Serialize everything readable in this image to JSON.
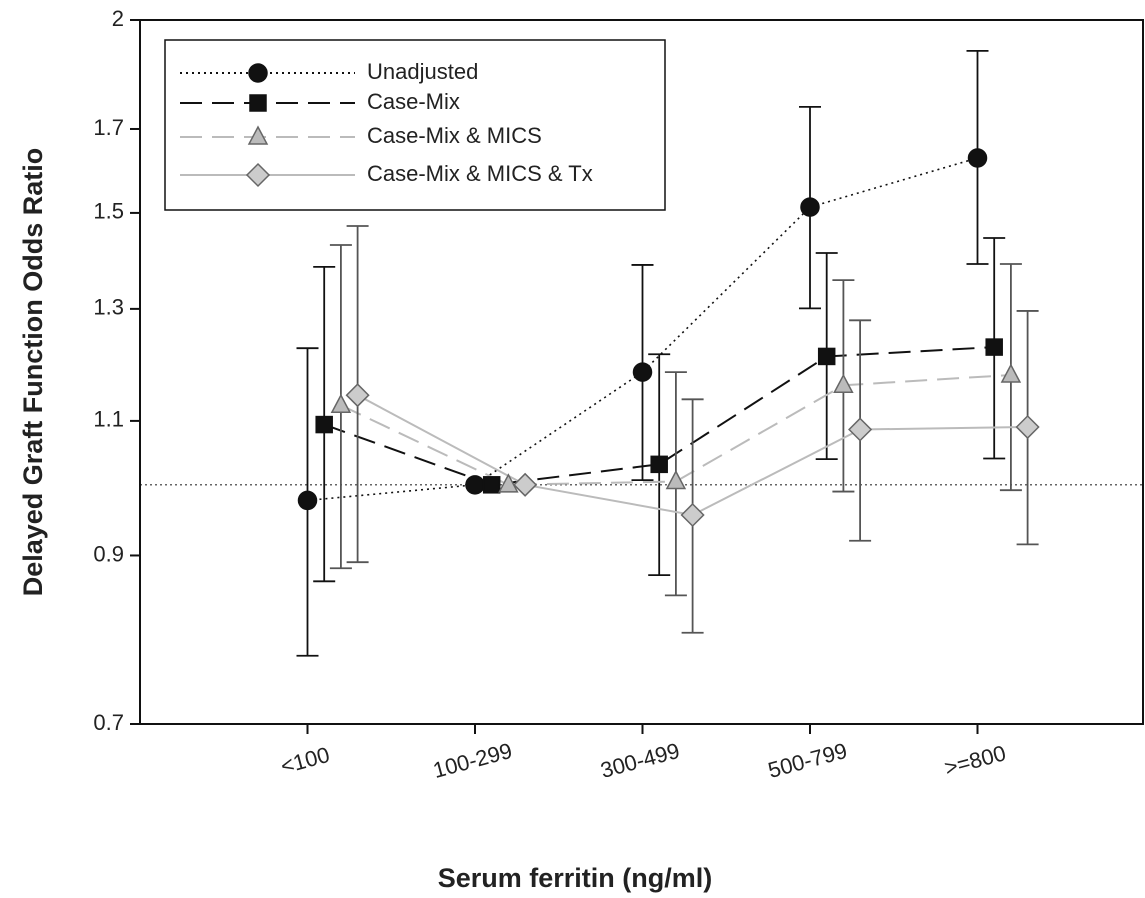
{
  "chart_data": {
    "type": "line",
    "y_label": "Delayed Graft Function Odds Ratio",
    "x_label": "Serum ferritin (ng/ml)",
    "categories": [
      "<100",
      "100-299",
      "300-499",
      "500-799",
      ">=800"
    ],
    "ylim": [
      0.7,
      2
    ],
    "yticks": [
      0.7,
      0.9,
      1.1,
      1.3,
      1.5,
      1.7,
      2
    ],
    "log_y": true,
    "reference_line": 1,
    "legend_position": "upper-left",
    "series": [
      {
        "name": "Unadjusted",
        "color": "#111111",
        "dash": "dotted",
        "marker": "circle",
        "marker_fill": "#111111",
        "values": [
          0.977,
          1.0,
          1.183,
          1.513,
          1.628
        ],
        "lower": [
          0.775,
          null,
          1.007,
          1.301,
          1.39
        ],
        "upper": [
          1.226,
          null,
          1.388,
          1.757,
          1.91
        ]
      },
      {
        "name": "Case-Mix",
        "color": "#111111",
        "dash": "dashed",
        "marker": "square",
        "marker_fill": "#111111",
        "values": [
          1.094,
          1.0,
          1.031,
          1.211,
          1.228
        ],
        "lower": [
          0.866,
          null,
          0.874,
          1.039,
          1.04
        ],
        "upper": [
          1.384,
          null,
          1.215,
          1.413,
          1.445
        ]
      },
      {
        "name": "Case-Mix & MICS",
        "color": "#bbbbbb",
        "dash": "dashed",
        "marker": "triangle",
        "marker_fill": "#bbbbbb",
        "values": [
          1.126,
          1.0,
          1.005,
          1.16,
          1.178
        ],
        "lower": [
          0.883,
          null,
          0.848,
          0.99,
          0.992
        ],
        "upper": [
          1.43,
          null,
          1.183,
          1.357,
          1.39
        ]
      },
      {
        "name": "Case-Mix & MICS & Tx",
        "color": "#bbbbbb",
        "dash": "solid",
        "marker": "diamond",
        "marker_fill": "#cccccc",
        "values": [
          1.143,
          1.0,
          0.956,
          1.086,
          1.09
        ],
        "lower": [
          0.891,
          null,
          0.802,
          0.92,
          0.915
        ],
        "upper": [
          1.471,
          null,
          1.136,
          1.278,
          1.296
        ]
      }
    ]
  }
}
